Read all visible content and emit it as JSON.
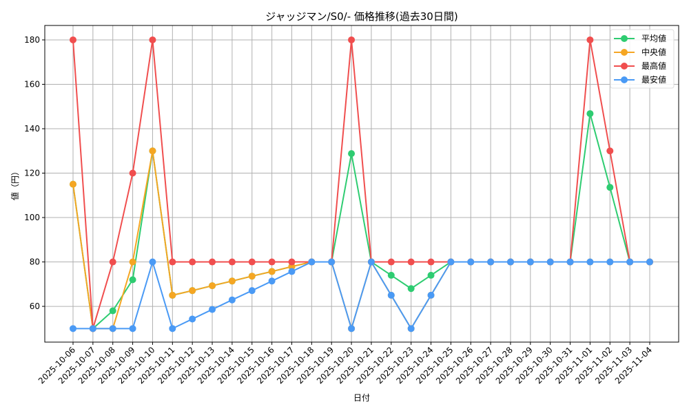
{
  "chart_data": {
    "type": "line",
    "title": "ジャッジマン/S0/- 価格推移(過去30日間)",
    "xlabel": "日付",
    "ylabel": "値（円）",
    "ylim": [
      43.9,
      186.5
    ],
    "yticks": [
      60,
      80,
      100,
      120,
      140,
      160,
      180
    ],
    "grid": true,
    "legend_position": "upper right",
    "categories": [
      "2025-10-06",
      "2025-10-07",
      "2025-10-08",
      "2025-10-09",
      "2025-10-10",
      "2025-10-11",
      "2025-10-12",
      "2025-10-13",
      "2025-10-14",
      "2025-10-15",
      "2025-10-16",
      "2025-10-17",
      "2025-10-18",
      "2025-10-19",
      "2025-10-20",
      "2025-10-21",
      "2025-10-22",
      "2025-10-23",
      "2025-10-24",
      "2025-10-25",
      "2025-10-26",
      "2025-10-27",
      "2025-10-28",
      "2025-10-29",
      "2025-10-30",
      "2025-10-31",
      "2025-11-01",
      "2025-11-02",
      "2025-11-03",
      "2025-11-04"
    ],
    "series": [
      {
        "name": "平均値",
        "color": "#2ecc71",
        "values": [
          115,
          50,
          58,
          72,
          130,
          65,
          67.1,
          69.3,
          71.4,
          73.6,
          75.7,
          77.9,
          80,
          80,
          128.8,
          80,
          74,
          68,
          74,
          80,
          80,
          80,
          80,
          80,
          80,
          80,
          146.8,
          113.6,
          80,
          80
        ]
      },
      {
        "name": "中央値",
        "color": "#f5a623",
        "values": [
          115,
          50,
          50,
          80,
          130,
          65,
          67.1,
          69.3,
          71.4,
          73.6,
          75.7,
          77.9,
          80,
          80,
          50,
          80,
          65,
          50,
          65,
          80,
          80,
          80,
          80,
          80,
          80,
          80,
          80,
          80,
          80,
          80
        ]
      },
      {
        "name": "最高値",
        "color": "#f04e4e",
        "values": [
          180,
          50,
          80,
          120,
          180,
          80,
          80,
          80,
          80,
          80,
          80,
          80,
          80,
          80,
          180,
          80,
          80,
          80,
          80,
          80,
          80,
          80,
          80,
          80,
          80,
          80,
          180,
          130,
          80,
          80
        ]
      },
      {
        "name": "最安値",
        "color": "#4a9af5",
        "values": [
          50,
          50,
          50,
          50,
          80,
          50,
          54.3,
          58.6,
          62.9,
          67.1,
          71.4,
          75.7,
          80,
          80,
          50,
          80,
          65,
          50,
          65,
          80,
          80,
          80,
          80,
          80,
          80,
          80,
          80,
          80,
          80,
          80
        ]
      }
    ]
  }
}
